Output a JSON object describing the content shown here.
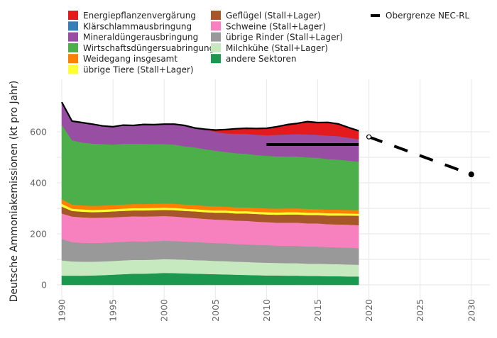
{
  "chart_data": {
    "type": "area",
    "stacked": true,
    "title": "",
    "xlabel": "",
    "ylabel": "Deutsche Ammoniakemissionen (kt pro Jahr)",
    "xlim": [
      1989.5,
      2031.5
    ],
    "ylim": [
      -10,
      740
    ],
    "x_ticks": [
      1990,
      1995,
      2000,
      2005,
      2010,
      2015,
      2020,
      2025,
      2030
    ],
    "x_tick_labels": [
      "1990",
      "1995",
      "2000",
      "2005",
      "2010",
      "2015",
      "2020",
      "2025",
      "2030"
    ],
    "y_ticks": [
      0,
      200,
      400,
      600
    ],
    "y_tick_labels": [
      "0",
      "200",
      "400",
      "600"
    ],
    "y_minor_ticks": [
      100,
      300,
      500
    ],
    "grid": true,
    "legend_position": "top",
    "x": [
      1990,
      1991,
      1992,
      1993,
      1994,
      1995,
      1996,
      1997,
      1998,
      1999,
      2000,
      2001,
      2002,
      2003,
      2004,
      2005,
      2006,
      2007,
      2008,
      2009,
      2010,
      2011,
      2012,
      2013,
      2014,
      2015,
      2016,
      2017,
      2018,
      2019
    ],
    "series": [
      {
        "name": "andere Sektoren",
        "color": "#1a9850",
        "values": [
          36,
          36,
          36,
          37,
          38,
          40,
          42,
          44,
          44,
          45,
          47,
          46,
          45,
          44,
          43,
          42,
          41,
          40,
          39,
          38,
          37,
          37,
          36,
          36,
          35,
          35,
          34,
          34,
          33,
          33
        ]
      },
      {
        "name": "Milchkühe (Stall+Lager)",
        "color": "#c7e9c0",
        "values": [
          60,
          56,
          55,
          54,
          54,
          54,
          54,
          54,
          54,
          54,
          54,
          54,
          54,
          53,
          53,
          52,
          52,
          51,
          51,
          50,
          50,
          49,
          49,
          49,
          48,
          48,
          48,
          47,
          47,
          46
        ]
      },
      {
        "name": "übrige Rinder (Stall+Lager)",
        "color": "#999999",
        "values": [
          84,
          76,
          74,
          73,
          73,
          73,
          73,
          73,
          72,
          72,
          72,
          72,
          71,
          71,
          70,
          70,
          70,
          69,
          69,
          69,
          69,
          68,
          68,
          68,
          67,
          67,
          66,
          66,
          66,
          65
        ]
      },
      {
        "name": "Schweine (Stall+Lager)",
        "color": "#f781bf",
        "values": [
          100,
          100,
          100,
          99,
          99,
          98,
          98,
          98,
          98,
          98,
          97,
          96,
          95,
          94,
          93,
          92,
          92,
          92,
          92,
          91,
          90,
          90,
          91,
          91,
          91,
          91,
          90,
          90,
          90,
          90
        ]
      },
      {
        "name": "Geflügel (Stall+Lager)",
        "color": "#a65628",
        "values": [
          27,
          22,
          22,
          22,
          22,
          23,
          23,
          23,
          24,
          24,
          24,
          25,
          25,
          26,
          26,
          27,
          28,
          28,
          29,
          30,
          30,
          31,
          32,
          32,
          33,
          33,
          34,
          35,
          36,
          37
        ]
      },
      {
        "name": "übrige Tiere (Stall+Lager)",
        "color": "#ffff33",
        "values": [
          11,
          9,
          9,
          9,
          9,
          9,
          9,
          9,
          9,
          9,
          9,
          9,
          9,
          9,
          9,
          9,
          9,
          9,
          9,
          9,
          9,
          9,
          9,
          9,
          9,
          9,
          9,
          9,
          8,
          8
        ]
      },
      {
        "name": "Weidegang insgesamt",
        "color": "#ff7f00",
        "values": [
          18,
          16,
          16,
          16,
          16,
          16,
          16,
          16,
          16,
          16,
          16,
          16,
          16,
          16,
          16,
          16,
          15,
          15,
          15,
          15,
          15,
          15,
          15,
          15,
          15,
          14,
          14,
          14,
          14,
          14
        ]
      },
      {
        "name": "Wirtschaftsdüngersuabringung",
        "color": "#4daf4a",
        "values": [
          292,
          252,
          246,
          244,
          241,
          237,
          238,
          236,
          236,
          234,
          233,
          232,
          228,
          226,
          222,
          218,
          214,
          212,
          210,
          207,
          206,
          205,
          204,
          203,
          202,
          201,
          198,
          196,
          193,
          190
        ]
      },
      {
        "name": "Mineraldüngerausbringung",
        "color": "#984ea3",
        "values": [
          88,
          75,
          78,
          76,
          71,
          70,
          73,
          72,
          76,
          76,
          78,
          80,
          82,
          76,
          78,
          74,
          73,
          76,
          78,
          80,
          80,
          84,
          86,
          88,
          90,
          90,
          92,
          92,
          90,
          88
        ]
      },
      {
        "name": "Klärschlammausbringung",
        "color": "#377eb8",
        "values": [
          0,
          0,
          0,
          0,
          0,
          0,
          0,
          0,
          0,
          0,
          0,
          0,
          0,
          0,
          0,
          0,
          0,
          0,
          0,
          0,
          0,
          0,
          0,
          0,
          0,
          0,
          0,
          0,
          0,
          0
        ]
      },
      {
        "name": "Energiepflanzenvergärung",
        "color": "#e41a1c",
        "values": [
          0,
          0,
          0,
          0,
          0,
          0,
          0,
          0,
          0,
          0,
          0,
          0,
          0,
          0,
          0,
          7,
          15,
          20,
          22,
          24,
          28,
          32,
          38,
          42,
          50,
          48,
          52,
          48,
          40,
          33
        ]
      }
    ],
    "total_line": {
      "name": "Gesamt",
      "color": "#000000"
    },
    "reference_lines": [
      {
        "name": "Obergrenze NEC-RL",
        "style": "solid",
        "color": "#000000",
        "x": [
          2010,
          2019
        ],
        "y": [
          550,
          550
        ]
      },
      {
        "name": "Obergrenze NEC-RL",
        "style": "dashed",
        "color": "#000000",
        "x": [
          2020,
          2030
        ],
        "y": [
          580,
          433
        ],
        "markers": [
          {
            "x": 2020,
            "y": 580,
            "fill": "open"
          },
          {
            "x": 2030,
            "y": 433,
            "fill": "filled"
          }
        ]
      }
    ],
    "legend": {
      "columns": [
        [
          "Energiepflanzenvergärung",
          "Klärschlammausbringung",
          "Mineraldüngerausbringung",
          "Wirtschaftsdüngersuabringung",
          "Weidegang insgesamt",
          "übrige Tiere (Stall+Lager)"
        ],
        [
          "Geflügel (Stall+Lager)",
          "Schweine (Stall+Lager)",
          "übrige Rinder (Stall+Lager)",
          "Milchkühe (Stall+Lager)",
          "andere Sektoren"
        ],
        [
          "Obergrenze NEC-RL"
        ]
      ]
    }
  }
}
